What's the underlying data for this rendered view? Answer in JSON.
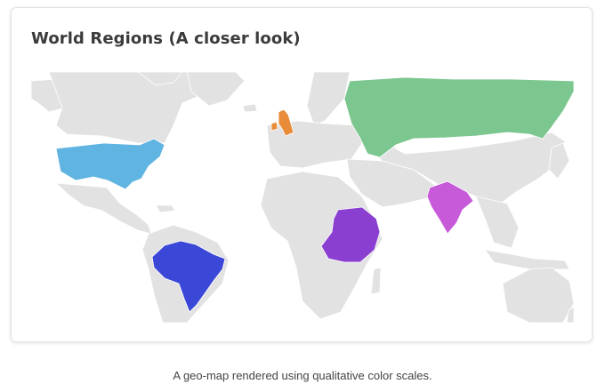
{
  "card": {
    "title": "World Regions (A closer look)"
  },
  "caption": "A geo-map rendered using qualitative color scales.",
  "map": {
    "base_color": "#e2e2e2",
    "border_color": "#ffffff",
    "highlighted_regions": [
      {
        "id": "usa",
        "color": "#5fb4e2"
      },
      {
        "id": "brazil",
        "color": "#3b47d6"
      },
      {
        "id": "uk-ireland",
        "color": "#e88c3a"
      },
      {
        "id": "russia",
        "color": "#7cc78f"
      },
      {
        "id": "east-africa",
        "color": "#8a3fd1"
      },
      {
        "id": "india",
        "color": "#c65ad8"
      }
    ]
  }
}
